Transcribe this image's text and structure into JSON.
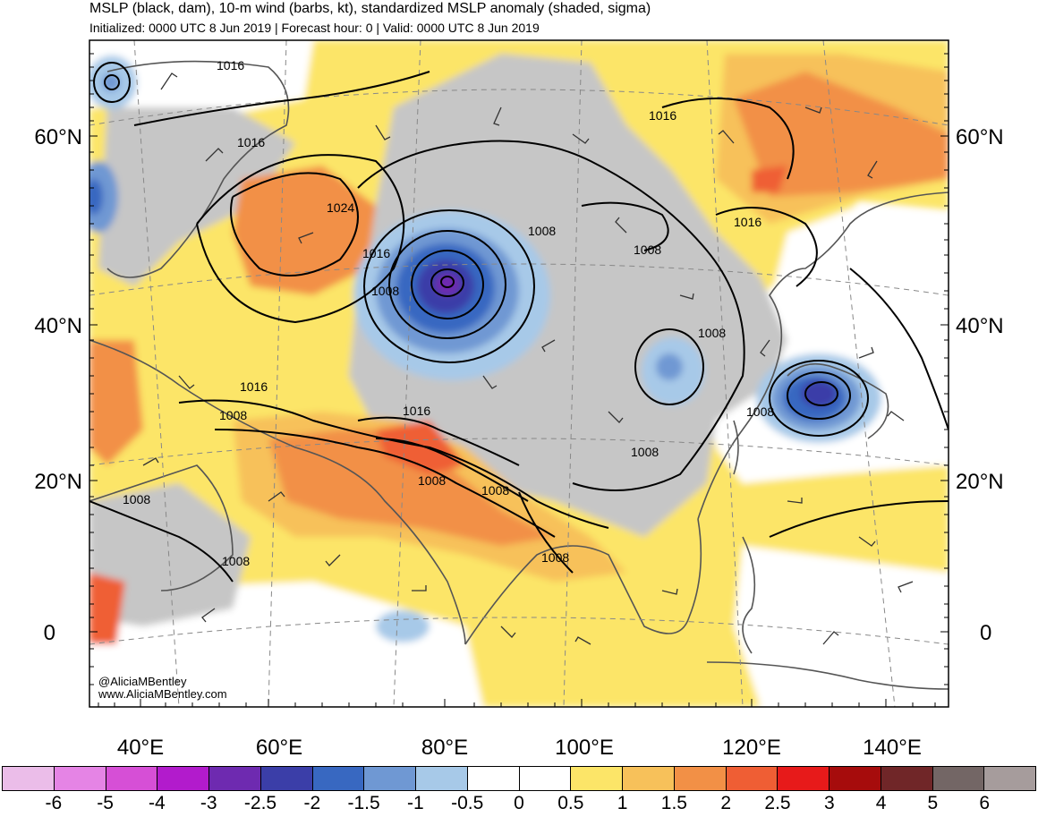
{
  "header": {
    "title": "MSLP (black, dam), 10-m wind (barbs, kt), standardized MSLP anomaly (shaded, sigma)",
    "subtitle": "Initialized: 0000 UTC 8 Jun 2019 | Forecast hour: 0 | Valid: 0000 UTC 8 Jun 2019"
  },
  "map": {
    "lat_labels": [
      "60°N",
      "40°N",
      "20°N",
      "0"
    ],
    "lon_labels": [
      "40°E",
      "60°E",
      "80°E",
      "100°E",
      "120°E",
      "140°E"
    ],
    "contour_labels": [
      "1016",
      "1016",
      "1016",
      "1024",
      "1016",
      "1008",
      "1008",
      "1008",
      "1008",
      "1016",
      "1008",
      "1016",
      "1008",
      "1016",
      "1008",
      "1008",
      "1008",
      "1008",
      "1008",
      "1008"
    ],
    "credit_handle": "@AliciaMBentley",
    "credit_url": "www.AliciaMBentley.com",
    "colors": {
      "land_outline": "#555555",
      "contour": "#000000",
      "grid": "#888888"
    }
  },
  "colorbar": {
    "colors": [
      "#ebbde9",
      "#e584e5",
      "#d64fd6",
      "#b21bcc",
      "#6e2ab0",
      "#3b3ea8",
      "#3868c1",
      "#6f98d3",
      "#a7c9e8",
      "#ffffff",
      "#ffffff",
      "#fce568",
      "#f7c15a",
      "#f29046",
      "#ef5e34",
      "#e71a1a",
      "#a60c0c",
      "#702628",
      "#736665",
      "#a69c9c"
    ],
    "labels": [
      "-6",
      "-5",
      "-4",
      "-3",
      "-2.5",
      "-2",
      "-1.5",
      "-1",
      "-0.5",
      "0",
      "0.5",
      "1",
      "1.5",
      "2",
      "2.5",
      "3",
      "4",
      "5",
      "6"
    ]
  }
}
